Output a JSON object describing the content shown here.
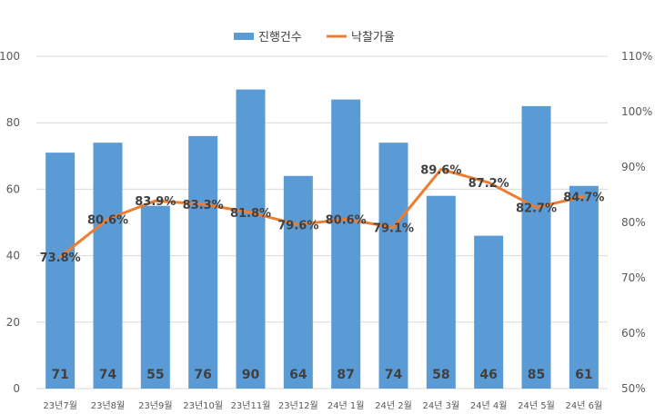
{
  "chart_data": {
    "type": "bar",
    "categories": [
      "23년7월",
      "23년8월",
      "23년9월",
      "23년10월",
      "23년11월",
      "23년12월",
      "24년 1월",
      "24년 2월",
      "24년 3월",
      "24년 4월",
      "24년 5월",
      "24년 6월"
    ],
    "series": [
      {
        "name": "진행건수",
        "type": "bar",
        "axis": "left",
        "values": [
          71,
          74,
          55,
          76,
          90,
          64,
          87,
          74,
          58,
          46,
          85,
          61
        ],
        "labels": [
          "71",
          "74",
          "55",
          "76",
          "90",
          "64",
          "87",
          "74",
          "58",
          "46",
          "85",
          "61"
        ]
      },
      {
        "name": "낙찰가율",
        "type": "line",
        "axis": "right",
        "values": [
          73.8,
          80.6,
          83.9,
          83.3,
          81.8,
          79.6,
          80.6,
          79.1,
          89.6,
          87.2,
          82.7,
          84.7
        ],
        "labels": [
          "73.8%",
          "80.6%",
          "83.9%",
          "83.3%",
          "81.8%",
          "79.6%",
          "80.6%",
          "79.1%",
          "89.6%",
          "87.2%",
          "82.7%",
          "84.7%"
        ]
      }
    ],
    "y_left": {
      "range": [
        0,
        100
      ],
      "ticks": [
        "0",
        "20",
        "40",
        "60",
        "80",
        "100"
      ]
    },
    "y_right": {
      "range": [
        50,
        110
      ],
      "ticks": [
        "50%",
        "60%",
        "70%",
        "80%",
        "90%",
        "100%",
        "110%"
      ]
    },
    "grid": true,
    "legend": "top-center",
    "colors": {
      "bar": "#5b9bd5",
      "line": "#ed7d31",
      "grid": "#d9d9d9"
    }
  }
}
